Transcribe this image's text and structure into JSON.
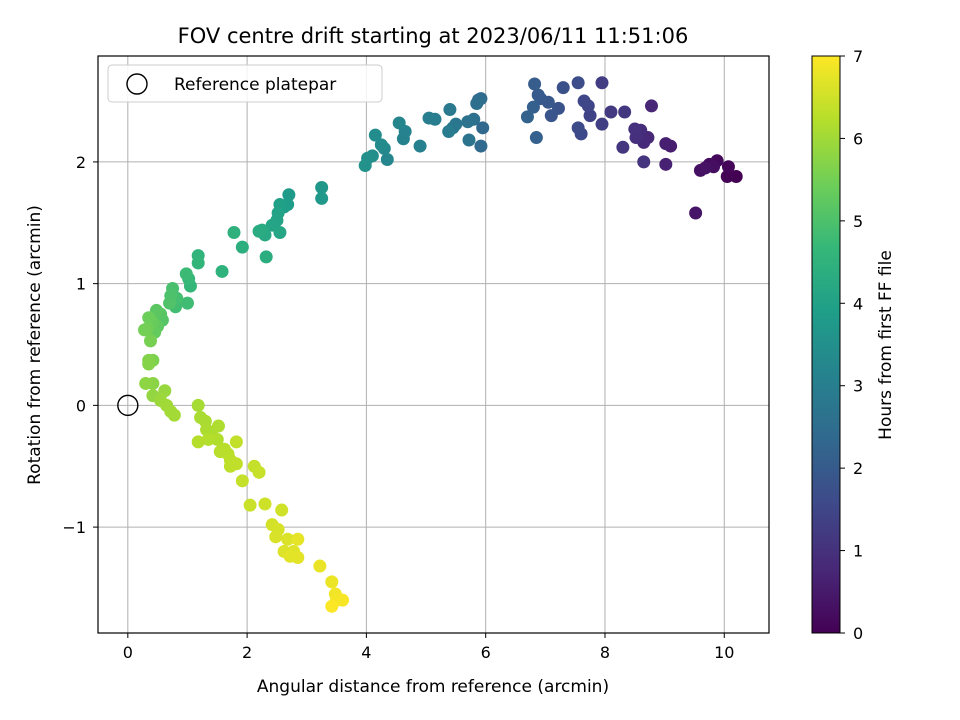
{
  "chart_data": {
    "type": "scatter",
    "title": "FOV centre drift starting at 2023/06/11 11:51:06",
    "xlabel": "Angular distance from reference (arcmin)",
    "ylabel": "Rotation from reference (arcmin)",
    "xlim": [
      -0.5,
      10.75
    ],
    "ylim": [
      -1.87,
      2.87
    ],
    "xticks": [
      0,
      2,
      4,
      6,
      8,
      10
    ],
    "yticks": [
      -1,
      0,
      1,
      2
    ],
    "grid": true,
    "legend": {
      "placement": "top-left",
      "entries": [
        "Reference platepar"
      ]
    },
    "reference_point": {
      "x": 0,
      "y": 0,
      "label": "Reference platepar"
    },
    "colorbar": {
      "label": "Hours from first FF file",
      "colormap": "viridis",
      "range": [
        0,
        7
      ],
      "ticks": [
        0,
        1,
        2,
        3,
        4,
        5,
        6,
        7
      ]
    },
    "points": [
      {
        "x": 10.2,
        "y": 1.88,
        "t": 0.0
      },
      {
        "x": 10.05,
        "y": 1.88,
        "t": 0.05
      },
      {
        "x": 10.07,
        "y": 1.96,
        "t": 0.1
      },
      {
        "x": 9.88,
        "y": 2.01,
        "t": 0.15
      },
      {
        "x": 9.75,
        "y": 1.98,
        "t": 0.2
      },
      {
        "x": 9.82,
        "y": 1.96,
        "t": 0.25
      },
      {
        "x": 9.6,
        "y": 1.93,
        "t": 0.3
      },
      {
        "x": 9.68,
        "y": 1.95,
        "t": 0.35
      },
      {
        "x": 9.52,
        "y": 1.58,
        "t": 0.4
      },
      {
        "x": 9.1,
        "y": 2.13,
        "t": 0.55
      },
      {
        "x": 9.02,
        "y": 2.15,
        "t": 0.6
      },
      {
        "x": 9.02,
        "y": 1.98,
        "t": 0.65
      },
      {
        "x": 8.78,
        "y": 2.46,
        "t": 0.75
      },
      {
        "x": 8.72,
        "y": 2.2,
        "t": 0.8
      },
      {
        "x": 8.65,
        "y": 2.16,
        "t": 0.85
      },
      {
        "x": 8.6,
        "y": 2.26,
        "t": 0.9
      },
      {
        "x": 8.52,
        "y": 2.2,
        "t": 0.95
      },
      {
        "x": 8.5,
        "y": 2.27,
        "t": 1.0
      },
      {
        "x": 8.65,
        "y": 2.0,
        "t": 1.05
      },
      {
        "x": 8.3,
        "y": 2.12,
        "t": 1.1
      },
      {
        "x": 8.33,
        "y": 2.41,
        "t": 1.15
      },
      {
        "x": 8.1,
        "y": 2.41,
        "t": 1.2
      },
      {
        "x": 7.95,
        "y": 2.65,
        "t": 1.25
      },
      {
        "x": 7.95,
        "y": 2.31,
        "t": 1.3
      },
      {
        "x": 7.75,
        "y": 2.38,
        "t": 1.4
      },
      {
        "x": 7.72,
        "y": 2.46,
        "t": 1.45
      },
      {
        "x": 7.65,
        "y": 2.5,
        "t": 1.5
      },
      {
        "x": 7.6,
        "y": 2.23,
        "t": 1.55
      },
      {
        "x": 7.55,
        "y": 2.28,
        "t": 1.6
      },
      {
        "x": 7.55,
        "y": 2.65,
        "t": 1.65
      },
      {
        "x": 7.3,
        "y": 2.61,
        "t": 1.75
      },
      {
        "x": 7.22,
        "y": 2.44,
        "t": 1.8
      },
      {
        "x": 7.1,
        "y": 2.38,
        "t": 1.85
      },
      {
        "x": 7.05,
        "y": 2.49,
        "t": 1.9
      },
      {
        "x": 6.92,
        "y": 2.52,
        "t": 1.95
      },
      {
        "x": 6.88,
        "y": 2.55,
        "t": 2.0
      },
      {
        "x": 6.82,
        "y": 2.64,
        "t": 2.05
      },
      {
        "x": 6.8,
        "y": 2.45,
        "t": 2.1
      },
      {
        "x": 6.85,
        "y": 2.2,
        "t": 2.15
      },
      {
        "x": 6.7,
        "y": 2.37,
        "t": 2.2
      },
      {
        "x": 5.95,
        "y": 2.28,
        "t": 2.35
      },
      {
        "x": 5.92,
        "y": 2.13,
        "t": 2.4
      },
      {
        "x": 5.92,
        "y": 2.52,
        "t": 2.45
      },
      {
        "x": 5.88,
        "y": 2.51,
        "t": 2.5
      },
      {
        "x": 5.85,
        "y": 2.48,
        "t": 2.55
      },
      {
        "x": 5.8,
        "y": 2.35,
        "t": 2.6
      },
      {
        "x": 5.7,
        "y": 2.33,
        "t": 2.65
      },
      {
        "x": 5.72,
        "y": 2.18,
        "t": 2.7
      },
      {
        "x": 5.5,
        "y": 2.31,
        "t": 2.75
      },
      {
        "x": 5.45,
        "y": 2.28,
        "t": 2.8
      },
      {
        "x": 5.4,
        "y": 2.43,
        "t": 2.85
      },
      {
        "x": 5.38,
        "y": 2.25,
        "t": 2.9
      },
      {
        "x": 5.15,
        "y": 2.35,
        "t": 2.95
      },
      {
        "x": 5.05,
        "y": 2.36,
        "t": 3.0
      },
      {
        "x": 4.9,
        "y": 2.13,
        "t": 3.05
      },
      {
        "x": 4.65,
        "y": 2.25,
        "t": 3.1
      },
      {
        "x": 4.62,
        "y": 2.19,
        "t": 3.15
      },
      {
        "x": 4.55,
        "y": 2.32,
        "t": 3.2
      },
      {
        "x": 4.35,
        "y": 2.02,
        "t": 3.25
      },
      {
        "x": 4.3,
        "y": 2.11,
        "t": 3.3
      },
      {
        "x": 4.25,
        "y": 2.14,
        "t": 3.35
      },
      {
        "x": 4.15,
        "y": 2.22,
        "t": 3.4
      },
      {
        "x": 4.1,
        "y": 2.05,
        "t": 3.45
      },
      {
        "x": 4.02,
        "y": 2.03,
        "t": 3.5
      },
      {
        "x": 3.98,
        "y": 1.97,
        "t": 3.55
      },
      {
        "x": 3.25,
        "y": 1.79,
        "t": 3.7
      },
      {
        "x": 3.25,
        "y": 1.7,
        "t": 3.75
      },
      {
        "x": 2.7,
        "y": 1.73,
        "t": 3.8
      },
      {
        "x": 2.68,
        "y": 1.65,
        "t": 3.85
      },
      {
        "x": 2.62,
        "y": 1.63,
        "t": 3.9
      },
      {
        "x": 2.55,
        "y": 1.65,
        "t": 3.95
      },
      {
        "x": 2.52,
        "y": 1.58,
        "t": 4.0
      },
      {
        "x": 2.5,
        "y": 1.52,
        "t": 4.05
      },
      {
        "x": 2.42,
        "y": 1.48,
        "t": 4.1
      },
      {
        "x": 2.55,
        "y": 1.42,
        "t": 4.15
      },
      {
        "x": 2.3,
        "y": 1.4,
        "t": 4.2
      },
      {
        "x": 2.25,
        "y": 1.44,
        "t": 4.25
      },
      {
        "x": 2.2,
        "y": 1.43,
        "t": 4.3
      },
      {
        "x": 2.32,
        "y": 1.22,
        "t": 4.35
      },
      {
        "x": 1.92,
        "y": 1.3,
        "t": 4.4
      },
      {
        "x": 1.78,
        "y": 1.42,
        "t": 4.45
      },
      {
        "x": 1.58,
        "y": 1.1,
        "t": 4.5
      },
      {
        "x": 1.18,
        "y": 1.23,
        "t": 4.55
      },
      {
        "x": 1.18,
        "y": 1.17,
        "t": 4.6
      },
      {
        "x": 1.05,
        "y": 0.98,
        "t": 4.65
      },
      {
        "x": 1.02,
        "y": 1.04,
        "t": 4.7
      },
      {
        "x": 0.98,
        "y": 1.08,
        "t": 4.75
      },
      {
        "x": 1.0,
        "y": 0.84,
        "t": 4.8
      },
      {
        "x": 0.8,
        "y": 0.81,
        "t": 4.85
      },
      {
        "x": 0.82,
        "y": 0.88,
        "t": 4.9
      },
      {
        "x": 0.75,
        "y": 0.96,
        "t": 4.95
      },
      {
        "x": 0.72,
        "y": 0.9,
        "t": 5.0
      },
      {
        "x": 0.7,
        "y": 0.84,
        "t": 5.05
      },
      {
        "x": 0.58,
        "y": 0.7,
        "t": 5.1
      },
      {
        "x": 0.55,
        "y": 0.75,
        "t": 5.15
      },
      {
        "x": 0.48,
        "y": 0.78,
        "t": 5.2
      },
      {
        "x": 0.5,
        "y": 0.65,
        "t": 5.25
      },
      {
        "x": 0.45,
        "y": 0.6,
        "t": 5.3
      },
      {
        "x": 0.42,
        "y": 0.68,
        "t": 5.35
      },
      {
        "x": 0.35,
        "y": 0.72,
        "t": 5.4
      },
      {
        "x": 0.33,
        "y": 0.63,
        "t": 5.45
      },
      {
        "x": 0.28,
        "y": 0.62,
        "t": 5.5
      },
      {
        "x": 0.38,
        "y": 0.53,
        "t": 5.55
      },
      {
        "x": 0.42,
        "y": 0.37,
        "t": 5.6
      },
      {
        "x": 0.35,
        "y": 0.37,
        "t": 5.65
      },
      {
        "x": 0.35,
        "y": 0.34,
        "t": 5.7
      },
      {
        "x": 0.42,
        "y": 0.18,
        "t": 5.75
      },
      {
        "x": 0.3,
        "y": 0.18,
        "t": 5.8
      },
      {
        "x": 0.42,
        "y": 0.08,
        "t": 5.85
      },
      {
        "x": 0.62,
        "y": 0.12,
        "t": 5.9
      },
      {
        "x": 0.55,
        "y": 0.04,
        "t": 5.95
      },
      {
        "x": 0.65,
        "y": 0.0,
        "t": 6.0
      },
      {
        "x": 0.72,
        "y": -0.05,
        "t": 6.02
      },
      {
        "x": 0.78,
        "y": -0.08,
        "t": 6.04
      },
      {
        "x": 1.18,
        "y": 0.0,
        "t": 6.06
      },
      {
        "x": 1.22,
        "y": -0.1,
        "t": 6.08
      },
      {
        "x": 1.3,
        "y": -0.13,
        "t": 6.1
      },
      {
        "x": 1.32,
        "y": -0.2,
        "t": 6.12
      },
      {
        "x": 1.4,
        "y": -0.22,
        "t": 6.14
      },
      {
        "x": 1.52,
        "y": -0.17,
        "t": 6.16
      },
      {
        "x": 1.5,
        "y": -0.28,
        "t": 6.18
      },
      {
        "x": 1.35,
        "y": -0.28,
        "t": 6.2
      },
      {
        "x": 1.18,
        "y": -0.3,
        "t": 6.22
      },
      {
        "x": 1.55,
        "y": -0.38,
        "t": 6.24
      },
      {
        "x": 1.62,
        "y": -0.36,
        "t": 6.26
      },
      {
        "x": 1.68,
        "y": -0.4,
        "t": 6.28
      },
      {
        "x": 1.72,
        "y": -0.45,
        "t": 6.3
      },
      {
        "x": 1.72,
        "y": -0.5,
        "t": 6.32
      },
      {
        "x": 1.82,
        "y": -0.48,
        "t": 6.34
      },
      {
        "x": 1.82,
        "y": -0.3,
        "t": 6.36
      },
      {
        "x": 1.92,
        "y": -0.62,
        "t": 6.38
      },
      {
        "x": 2.12,
        "y": -0.5,
        "t": 6.4
      },
      {
        "x": 2.2,
        "y": -0.55,
        "t": 6.42
      },
      {
        "x": 2.05,
        "y": -0.82,
        "t": 6.45
      },
      {
        "x": 2.3,
        "y": -0.81,
        "t": 6.48
      },
      {
        "x": 2.58,
        "y": -0.86,
        "t": 6.5
      },
      {
        "x": 2.42,
        "y": -0.98,
        "t": 6.55
      },
      {
        "x": 2.52,
        "y": -1.02,
        "t": 6.58
      },
      {
        "x": 2.48,
        "y": -1.08,
        "t": 6.6
      },
      {
        "x": 2.68,
        "y": -1.1,
        "t": 6.62
      },
      {
        "x": 2.62,
        "y": -1.2,
        "t": 6.65
      },
      {
        "x": 2.78,
        "y": -1.2,
        "t": 6.68
      },
      {
        "x": 2.72,
        "y": -1.24,
        "t": 6.7
      },
      {
        "x": 2.85,
        "y": -1.25,
        "t": 6.72
      },
      {
        "x": 2.85,
        "y": -1.1,
        "t": 6.74
      },
      {
        "x": 3.22,
        "y": -1.32,
        "t": 6.78
      },
      {
        "x": 3.42,
        "y": -1.45,
        "t": 6.82
      },
      {
        "x": 3.48,
        "y": -1.55,
        "t": 6.86
      },
      {
        "x": 3.5,
        "y": -1.6,
        "t": 6.9
      },
      {
        "x": 3.6,
        "y": -1.6,
        "t": 6.94
      },
      {
        "x": 3.42,
        "y": -1.65,
        "t": 6.98
      }
    ]
  }
}
